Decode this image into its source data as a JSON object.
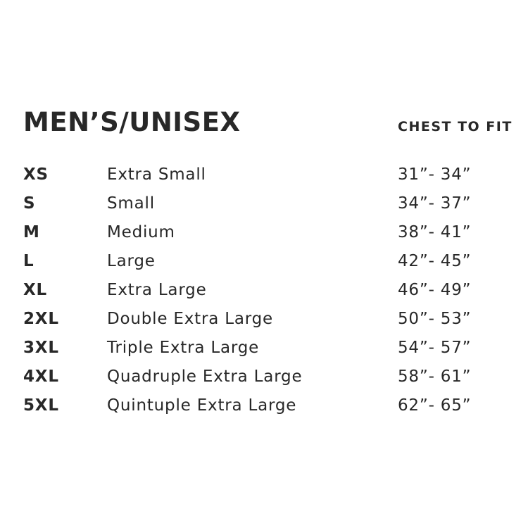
{
  "header": {
    "title": "MEN’S/UNISEX",
    "fit_label": "CHEST TO FIT"
  },
  "colors": {
    "background": "#ffffff",
    "text": "#282828"
  },
  "rows": [
    {
      "code": "XS",
      "name": "Extra Small",
      "chest": "31”- 34”"
    },
    {
      "code": "S",
      "name": "Small",
      "chest": "34”- 37”"
    },
    {
      "code": "M",
      "name": "Medium",
      "chest": "38”- 41”"
    },
    {
      "code": "L",
      "name": "Large",
      "chest": "42”- 45”"
    },
    {
      "code": "XL",
      "name": "Extra Large",
      "chest": "46”- 49”"
    },
    {
      "code": "2XL",
      "name": "Double Extra Large",
      "chest": "50”- 53”"
    },
    {
      "code": "3XL",
      "name": "Triple Extra Large",
      "chest": "54”- 57”"
    },
    {
      "code": "4XL",
      "name": "Quadruple Extra Large",
      "chest": "58”- 61”"
    },
    {
      "code": "5XL",
      "name": "Quintuple Extra Large",
      "chest": "62”- 65”"
    }
  ]
}
